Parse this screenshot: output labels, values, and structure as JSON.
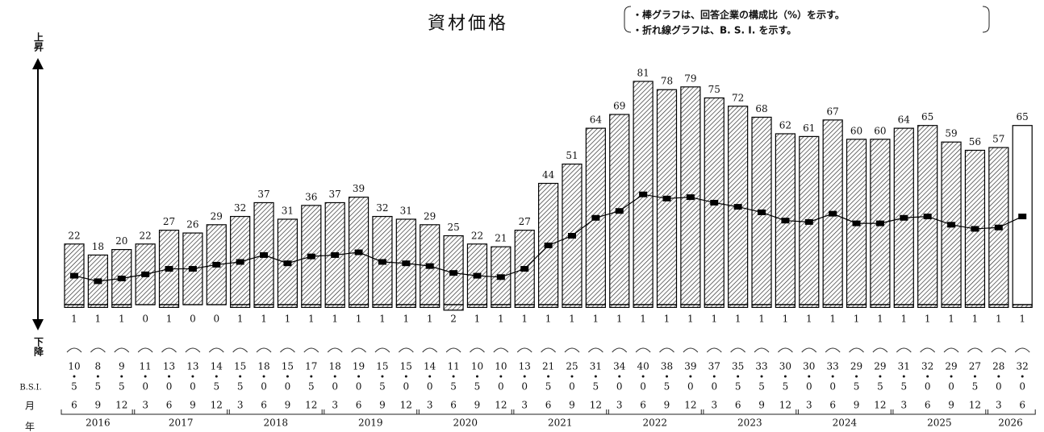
{
  "chart_data": {
    "type": "bar-line",
    "title": "資材価格",
    "notes": [
      "・棒グラフは、回答企業の構成比（%）を示す。",
      "・折れ線グラフは、B. S. I. を示す。"
    ],
    "month_label": "月",
    "year_label": "年",
    "years": [
      {
        "label": "2016",
        "months": [
          6,
          9,
          12
        ]
      },
      {
        "label": "2017",
        "months": [
          3,
          6,
          9,
          12
        ]
      },
      {
        "label": "2018",
        "months": [
          3,
          6,
          9,
          12
        ]
      },
      {
        "label": "2019",
        "months": [
          3,
          6,
          9,
          12
        ]
      },
      {
        "label": "2020",
        "months": [
          3,
          6,
          9,
          12
        ]
      },
      {
        "label": "2021",
        "months": [
          3,
          6,
          9,
          12
        ]
      },
      {
        "label": "2022",
        "months": [
          3,
          6,
          9,
          12
        ]
      },
      {
        "label": "2023",
        "months": [
          3,
          6,
          9,
          12
        ]
      },
      {
        "label": "2024",
        "months": [
          3,
          6,
          9,
          12
        ]
      },
      {
        "label": "2025",
        "months": [
          3,
          6,
          9,
          12
        ]
      },
      {
        "label": "2026",
        "months": [
          3,
          6
        ]
      }
    ],
    "series": [
      {
        "name": "上昇",
        "color": "#000000",
        "styles": [
          "hatched",
          "hatched",
          "hatched",
          "hatched",
          "hatched",
          "hatched",
          "hatched",
          "hatched",
          "hatched",
          "hatched",
          "hatched",
          "hatched",
          "hatched",
          "hatched",
          "hatched",
          "hatched",
          "hatched",
          "hatched",
          "hatched",
          "hatched",
          "hatched",
          "hatched",
          "hatched",
          "hatched",
          "hatched",
          "hatched",
          "hatched",
          "hatched",
          "hatched",
          "hatched",
          "hatched",
          "hatched",
          "hatched",
          "hatched",
          "hatched",
          "hatched",
          "hatched",
          "hatched",
          "hatched",
          "hatched",
          "open"
        ],
        "values": [
          22,
          18,
          20,
          22,
          27,
          26,
          29,
          32,
          37,
          31,
          36,
          37,
          39,
          32,
          31,
          29,
          25,
          22,
          21,
          27,
          44,
          51,
          64,
          69,
          81,
          78,
          79,
          75,
          72,
          68,
          62,
          61,
          67,
          60,
          60,
          64,
          65,
          59,
          56,
          57,
          65
        ]
      },
      {
        "name": "下降",
        "color": "#000000",
        "values": [
          1,
          1,
          1,
          0,
          1,
          0,
          0,
          1,
          1,
          1,
          1,
          1,
          1,
          1,
          1,
          1,
          2,
          1,
          1,
          1,
          1,
          1,
          1,
          1,
          1,
          1,
          1,
          1,
          1,
          1,
          1,
          1,
          1,
          1,
          1,
          1,
          1,
          1,
          1,
          1,
          1
        ]
      },
      {
        "name": "B.S.I.",
        "color": "#000000",
        "values": [
          10.5,
          8.5,
          9.5,
          11.0,
          13.0,
          13.0,
          14.5,
          15.5,
          18.0,
          15.0,
          17.5,
          18.0,
          19.0,
          15.5,
          15.0,
          14.0,
          11.5,
          10.5,
          10.0,
          13.0,
          21.5,
          25.0,
          31.5,
          34.0,
          40.0,
          38.5,
          39.0,
          37.0,
          35.5,
          33.5,
          30.5,
          30.0,
          33.0,
          29.5,
          29.5,
          31.5,
          32.0,
          29.0,
          27.5,
          28.0,
          32.0
        ],
        "value_labels": [
          [
            "10",
            "5"
          ],
          [
            "8",
            "5"
          ],
          [
            "9",
            "5"
          ],
          [
            "11",
            "0"
          ],
          [
            "13",
            "0"
          ],
          [
            "13",
            "0"
          ],
          [
            "14",
            "5"
          ],
          [
            "15",
            "5"
          ],
          [
            "18",
            "0"
          ],
          [
            "15",
            "0"
          ],
          [
            "17",
            "5"
          ],
          [
            "18",
            "0"
          ],
          [
            "19",
            "0"
          ],
          [
            "15",
            "5"
          ],
          [
            "15",
            "0"
          ],
          [
            "14",
            "0"
          ],
          [
            "11",
            "5"
          ],
          [
            "10",
            "5"
          ],
          [
            "10",
            "0"
          ],
          [
            "13",
            "0"
          ],
          [
            "21",
            "5"
          ],
          [
            "25",
            "0"
          ],
          [
            "31",
            "5"
          ],
          [
            "34",
            "0"
          ],
          [
            "40",
            "0"
          ],
          [
            "38",
            "5"
          ],
          [
            "39",
            "0"
          ],
          [
            "37",
            "0"
          ],
          [
            "35",
            "5"
          ],
          [
            "33",
            "5"
          ],
          [
            "30",
            "5"
          ],
          [
            "30",
            "0"
          ],
          [
            "33",
            "0"
          ],
          [
            "29",
            "5"
          ],
          [
            "29",
            "5"
          ],
          [
            "31",
            "5"
          ],
          [
            "32",
            "0"
          ],
          [
            "29",
            "0"
          ],
          [
            "27",
            "5"
          ],
          [
            "28",
            "0"
          ],
          [
            "32",
            "0"
          ]
        ]
      }
    ]
  }
}
